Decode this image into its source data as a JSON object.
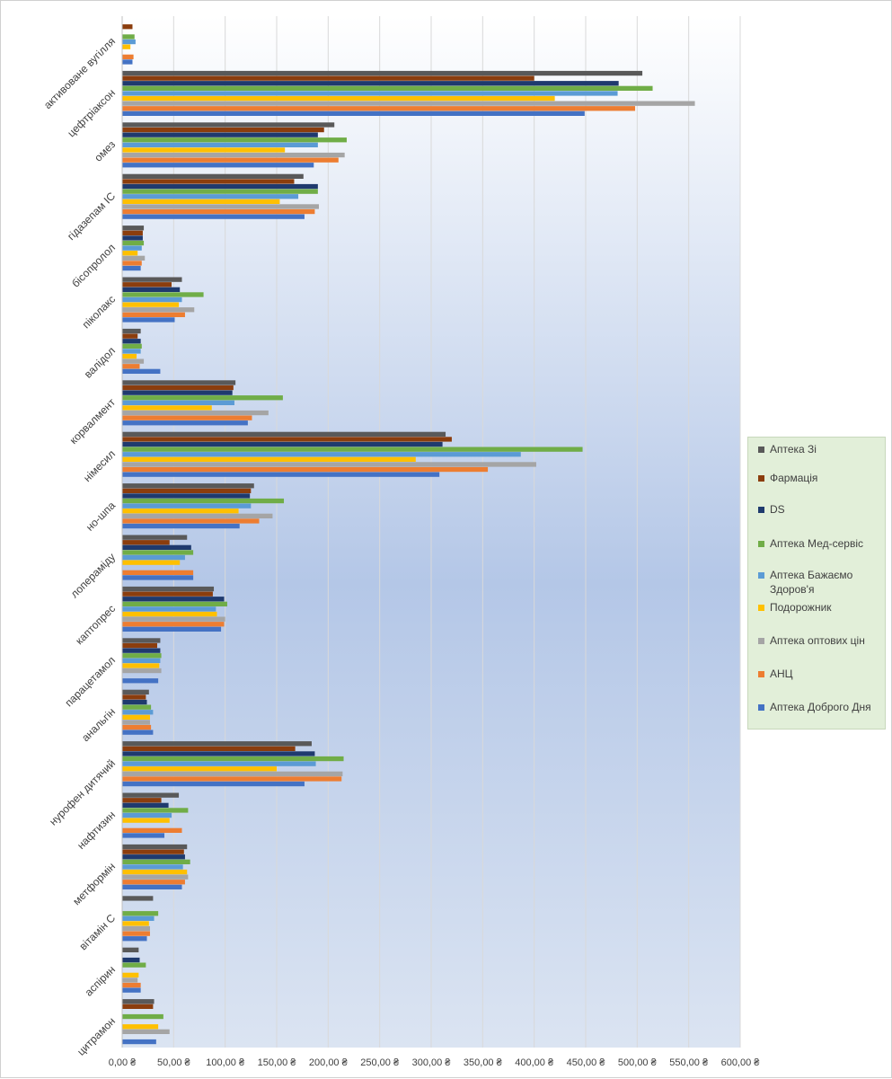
{
  "chart_data": {
    "type": "bar",
    "orientation": "horizontal",
    "title": "",
    "xlabel": "",
    "ylabel": "",
    "xlim": [
      0,
      600
    ],
    "x_ticks": [
      "0,00 ₴",
      "50,00 ₴",
      "100,00 ₴",
      "150,00 ₴",
      "200,00 ₴",
      "250,00 ₴",
      "300,00 ₴",
      "350,00 ₴",
      "400,00 ₴",
      "450,00 ₴",
      "500,00 ₴",
      "550,00 ₴",
      "600,00 ₴"
    ],
    "grid": "vertical",
    "legend_position": "right",
    "categories": [
      "активоване вугілля",
      "цефтріаксон",
      "омез",
      "гідазепам ІС",
      "бісопролол",
      "піколакс",
      "валідол",
      "корвалмент",
      "німесил",
      "но-шпа",
      "лопераміду",
      "каптопрес",
      "парацетамол",
      "анальгін",
      "нурофен дитячий",
      "нафтизин",
      "метформін",
      "вітамін С",
      "аспірин",
      "цитрамон"
    ],
    "series": [
      {
        "name": "Аптека Зі",
        "color": "#595959",
        "values": [
          0,
          505,
          206,
          176,
          21,
          58,
          18,
          110,
          314,
          128,
          63,
          89,
          37,
          26,
          184,
          55,
          63,
          30,
          16,
          31
        ]
      },
      {
        "name": "Фармація",
        "color": "#8b3d0d",
        "values": [
          10,
          400,
          196,
          167,
          20,
          48,
          15,
          108,
          320,
          125,
          46,
          88,
          34,
          23,
          168,
          38,
          60,
          0,
          0,
          30
        ]
      },
      {
        "name": "DS",
        "color": "#1f3a6e",
        "values": [
          0,
          482,
          190,
          190,
          20,
          56,
          18,
          107,
          311,
          124,
          67,
          99,
          37,
          24,
          187,
          45,
          61,
          0,
          17,
          0
        ]
      },
      {
        "name": "Аптека Мед-сервіс",
        "color": "#70ad47",
        "values": [
          12,
          515,
          218,
          190,
          21,
          79,
          19,
          156,
          447,
          157,
          69,
          102,
          38,
          28,
          215,
          64,
          66,
          35,
          23,
          40
        ]
      },
      {
        "name": "Аптека Бажаємо Здоров'я",
        "color": "#5b9bd5",
        "values": [
          13,
          481,
          190,
          171,
          19,
          58,
          18,
          109,
          387,
          125,
          61,
          91,
          37,
          30,
          188,
          48,
          59,
          31,
          0,
          0
        ]
      },
      {
        "name": "Подорожник",
        "color": "#ffc000",
        "values": [
          8,
          420,
          158,
          153,
          15,
          55,
          14,
          87,
          285,
          113,
          56,
          92,
          36,
          27,
          150,
          46,
          63,
          26,
          16,
          35
        ]
      },
      {
        "name": "Аптека оптових цін",
        "color": "#a5a5a5",
        "values": [
          0,
          556,
          216,
          191,
          22,
          70,
          21,
          142,
          402,
          146,
          0,
          100,
          38,
          27,
          214,
          0,
          64,
          27,
          15,
          46
        ]
      },
      {
        "name": "АНЦ",
        "color": "#ed7d31",
        "values": [
          11,
          498,
          210,
          187,
          19,
          61,
          17,
          126,
          355,
          133,
          69,
          99,
          0,
          28,
          213,
          58,
          61,
          27,
          18,
          0
        ]
      },
      {
        "name": "Аптека Доброго Дня",
        "color": "#4472c4",
        "values": [
          10,
          449,
          186,
          177,
          18,
          51,
          37,
          122,
          308,
          114,
          69,
          96,
          35,
          30,
          177,
          41,
          58,
          24,
          18,
          33
        ]
      }
    ]
  }
}
